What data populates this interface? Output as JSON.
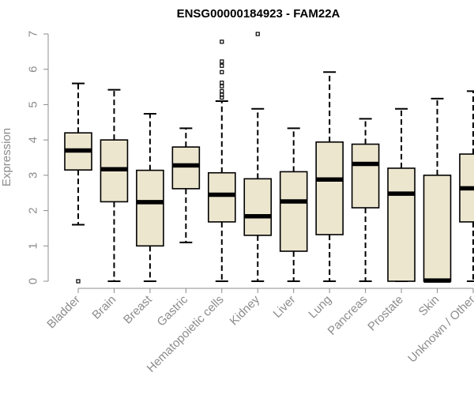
{
  "chart_data": {
    "type": "boxplot",
    "title": "ENSG00000184923 - FAM22A",
    "xlabel": "",
    "ylabel": "Expression",
    "ylim": [
      0,
      7
    ],
    "yticks": [
      0,
      1,
      2,
      3,
      4,
      5,
      6,
      7
    ],
    "box_fill": "#ede6cf",
    "categories": [
      "Bladder",
      "Brain",
      "Breast",
      "Gastric",
      "Hematopoietic cells",
      "Kidney",
      "Liver",
      "Lung",
      "Pancreas",
      "Prostate",
      "Skin",
      "Unknown / Other"
    ],
    "boxes": [
      {
        "whisker_low": 1.6,
        "q1": 3.15,
        "median": 3.7,
        "q3": 4.2,
        "whisker_high": 5.6,
        "outliers": [
          0.0
        ]
      },
      {
        "whisker_low": 0.0,
        "q1": 2.25,
        "median": 3.17,
        "q3": 4.0,
        "whisker_high": 5.42,
        "outliers": []
      },
      {
        "whisker_low": 0.0,
        "q1": 1.0,
        "median": 2.24,
        "q3": 3.14,
        "whisker_high": 4.74,
        "outliers": []
      },
      {
        "whisker_low": 1.1,
        "q1": 2.62,
        "median": 3.28,
        "q3": 3.8,
        "whisker_high": 4.33,
        "outliers": []
      },
      {
        "whisker_low": 0.0,
        "q1": 1.68,
        "median": 2.45,
        "q3": 3.07,
        "whisker_high": 5.1,
        "outliers": [
          5.2,
          5.28,
          5.38,
          5.52,
          5.62,
          5.92,
          6.1,
          6.22,
          6.78
        ]
      },
      {
        "whisker_low": 0.0,
        "q1": 1.3,
        "median": 1.84,
        "q3": 2.9,
        "whisker_high": 4.88,
        "outliers": [
          7.0
        ]
      },
      {
        "whisker_low": 0.0,
        "q1": 0.85,
        "median": 2.26,
        "q3": 3.1,
        "whisker_high": 4.33,
        "outliers": []
      },
      {
        "whisker_low": 0.0,
        "q1": 1.32,
        "median": 2.88,
        "q3": 3.94,
        "whisker_high": 5.92,
        "outliers": []
      },
      {
        "whisker_low": 0.0,
        "q1": 2.08,
        "median": 3.32,
        "q3": 3.88,
        "whisker_high": 4.6,
        "outliers": []
      },
      {
        "whisker_low": 0.0,
        "q1": 0.0,
        "median": 2.48,
        "q3": 3.2,
        "whisker_high": 4.88,
        "outliers": []
      },
      {
        "whisker_low": 0.0,
        "q1": 0.0,
        "median": 0.02,
        "q3": 3.0,
        "whisker_high": 5.17,
        "outliers": []
      },
      {
        "whisker_low": 0.0,
        "q1": 1.68,
        "median": 2.63,
        "q3": 3.6,
        "whisker_high": 5.38,
        "outliers": []
      }
    ]
  }
}
